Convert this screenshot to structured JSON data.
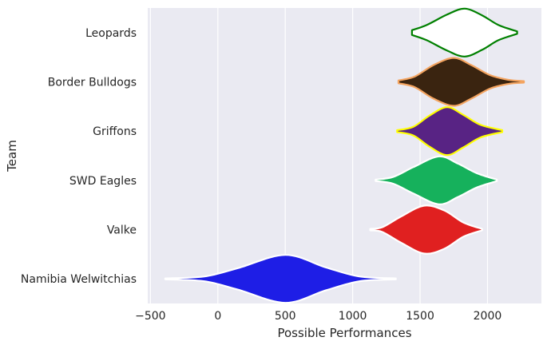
{
  "chart_data": {
    "type": "violin",
    "orientation": "horizontal",
    "xlabel": "Possible Performances",
    "ylabel": "Team",
    "xlim": [
      -520,
      2400
    ],
    "xticks": [
      -500,
      0,
      500,
      1000,
      1500,
      2000
    ],
    "grid": true,
    "colors": {
      "background": "#EAEAF2",
      "grid": "#FFFFFF"
    },
    "series": [
      {
        "category": "Leopards",
        "fill": "#FFFFFF",
        "edge": "#008000",
        "min": 1440,
        "max": 2220,
        "profile": [
          [
            1440,
            0.1
          ],
          [
            1550,
            0.32
          ],
          [
            1700,
            0.75
          ],
          [
            1830,
            1.0
          ],
          [
            1960,
            0.72
          ],
          [
            2080,
            0.32
          ],
          [
            2220,
            0.05
          ]
        ]
      },
      {
        "category": "Border Bulldogs",
        "fill": "#3A2410",
        "edge": "#F4A460",
        "min": 1340,
        "max": 2270,
        "profile": [
          [
            1340,
            0.06
          ],
          [
            1460,
            0.22
          ],
          [
            1600,
            0.7
          ],
          [
            1750,
            1.0
          ],
          [
            1880,
            0.7
          ],
          [
            2020,
            0.28
          ],
          [
            2160,
            0.08
          ],
          [
            2270,
            0.03
          ]
        ]
      },
      {
        "category": "Griffons",
        "fill": "#582384",
        "edge": "#FFFF00",
        "min": 1330,
        "max": 2110,
        "profile": [
          [
            1330,
            0.04
          ],
          [
            1450,
            0.18
          ],
          [
            1570,
            0.65
          ],
          [
            1700,
            1.0
          ],
          [
            1820,
            0.68
          ],
          [
            1950,
            0.26
          ],
          [
            2110,
            0.04
          ]
        ]
      },
      {
        "category": "SWD Eagles",
        "fill": "#16B15C",
        "edge": "#FFFFFF",
        "min": 1170,
        "max": 2070,
        "profile": [
          [
            1170,
            0.03
          ],
          [
            1300,
            0.14
          ],
          [
            1450,
            0.55
          ],
          [
            1640,
            1.0
          ],
          [
            1780,
            0.7
          ],
          [
            1920,
            0.3
          ],
          [
            2070,
            0.03
          ]
        ]
      },
      {
        "category": "Valke",
        "fill": "#E02020",
        "edge": "#FFFFFF",
        "min": 1130,
        "max": 1960,
        "profile": [
          [
            1130,
            0.03
          ],
          [
            1220,
            0.1
          ],
          [
            1360,
            0.55
          ],
          [
            1530,
            1.0
          ],
          [
            1680,
            0.8
          ],
          [
            1820,
            0.3
          ],
          [
            1960,
            0.03
          ]
        ]
      },
      {
        "category": "Namibia Welwitchias",
        "fill": "#1E1EE6",
        "edge": "#FFFFFF",
        "min": -390,
        "max": 1320,
        "profile": [
          [
            -390,
            0.02
          ],
          [
            -100,
            0.1
          ],
          [
            150,
            0.45
          ],
          [
            500,
            1.0
          ],
          [
            800,
            0.48
          ],
          [
            1050,
            0.1
          ],
          [
            1320,
            0.02
          ]
        ]
      }
    ]
  }
}
